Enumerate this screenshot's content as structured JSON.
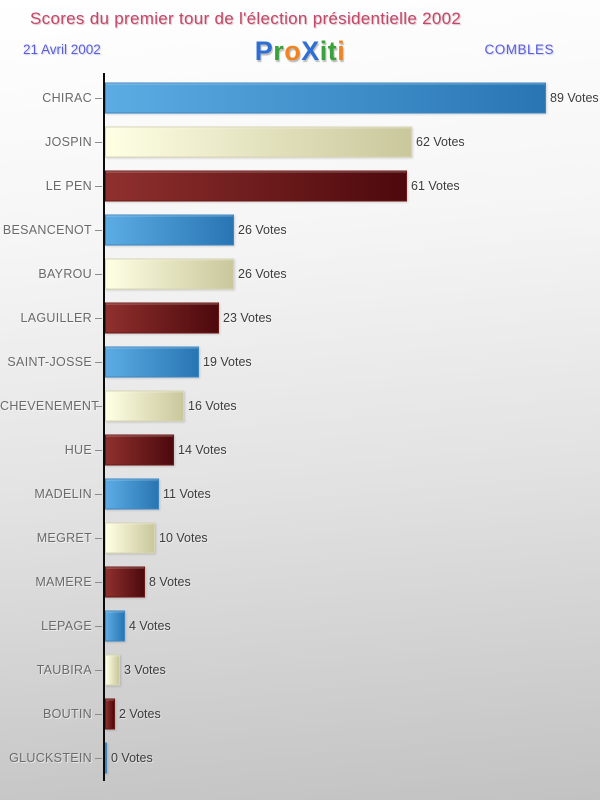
{
  "header": {
    "title": "Scores du premier tour de l'élection présidentielle 2002",
    "title_color": "#bf4a68",
    "date": "21 Avril 2002",
    "location": "COMBLES",
    "subheader_color": "#5c5fd6",
    "logo": {
      "text": "ProXiti",
      "letters": [
        {
          "char": "P",
          "color": "#2d6fd2"
        },
        {
          "char": "r",
          "color": "#3aa23a"
        },
        {
          "char": "o",
          "color": "#f08422"
        },
        {
          "char": "X",
          "color": "#2d6fd2"
        },
        {
          "char": "i",
          "color": "#3aa23a"
        },
        {
          "char": "t",
          "color": "#3aa23a"
        },
        {
          "char": "i",
          "color": "#f08422"
        }
      ]
    }
  },
  "chart_data": {
    "type": "bar",
    "orientation": "horizontal",
    "title": "Scores du premier tour de l'élection présidentielle 2002",
    "categories": [
      "CHIRAC",
      "JOSPIN",
      "LE PEN",
      "BESANCENOT",
      "BAYROU",
      "LAGUILLER",
      "SAINT-JOSSE",
      "CHEVENEMENT",
      "HUE",
      "MADELIN",
      "MEGRET",
      "MAMERE",
      "LEPAGE",
      "TAUBIRA",
      "BOUTIN",
      "GLUCKSTEIN"
    ],
    "values": [
      89,
      62,
      61,
      26,
      26,
      23,
      19,
      16,
      14,
      11,
      10,
      8,
      4,
      3,
      2,
      0
    ],
    "value_suffix": "Votes",
    "xlim": [
      0,
      89
    ],
    "grid": false,
    "legend": false,
    "axis_color": "#0a0a0a",
    "category_color": "#6a6a6a",
    "value_color": "#3d3d3d",
    "tick_color": "#8c8c8c",
    "bar_styles": [
      {
        "name": "blue",
        "from": "#5cace4",
        "to": "#2875b3",
        "border": "#3c86c2"
      },
      {
        "name": "cream",
        "from": "#ffffe4",
        "to": "#c9c79b",
        "border": "#d8d6b2"
      },
      {
        "name": "darkred",
        "from": "#8f302e",
        "to": "#4d090c",
        "border": "#6b1815"
      }
    ]
  }
}
